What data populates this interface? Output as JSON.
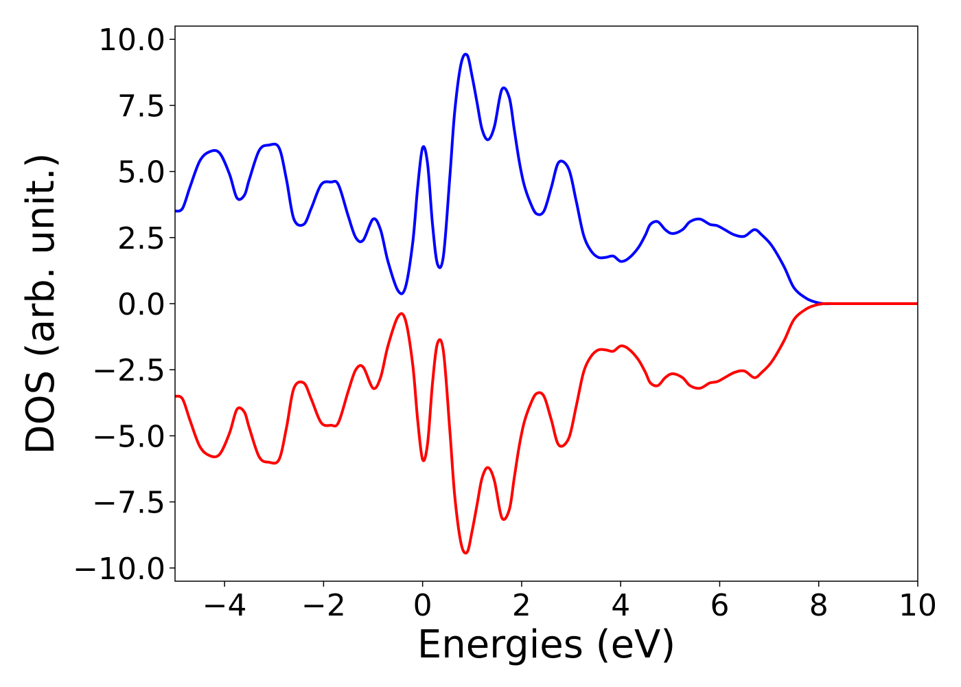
{
  "chart_data": {
    "type": "line",
    "xlabel": "Energies (eV)",
    "ylabel": "DOS (arb. unit.)",
    "xlim": [
      -5,
      10
    ],
    "ylim": [
      -10.5,
      10.5
    ],
    "x_ticks": [
      -4,
      -2,
      0,
      2,
      4,
      6,
      8,
      10
    ],
    "x_tick_labels": [
      "−4",
      "−2",
      "0",
      "2",
      "4",
      "6",
      "8",
      "10"
    ],
    "y_ticks": [
      10,
      7.5,
      5,
      2.5,
      0,
      -2.5,
      -5,
      -7.5,
      -10
    ],
    "y_tick_labels": [
      "10.0",
      "7.5",
      "5.0",
      "2.5",
      "0.0",
      "−2.5",
      "−5.0",
      "−7.5",
      "−10.0"
    ],
    "grid": false,
    "legend": "none",
    "series": [
      {
        "color": "#0000ff",
        "x": [
          -5.0,
          -4.85,
          -4.7,
          -4.5,
          -4.3,
          -4.1,
          -3.9,
          -3.75,
          -3.6,
          -3.5,
          -3.3,
          -3.1,
          -2.9,
          -2.75,
          -2.6,
          -2.4,
          -2.25,
          -2.05,
          -1.85,
          -1.7,
          -1.5,
          -1.35,
          -1.2,
          -1.0,
          -0.85,
          -0.7,
          -0.5,
          -0.35,
          -0.2,
          -0.1,
          0.0,
          0.1,
          0.2,
          0.3,
          0.42,
          0.55,
          0.65,
          0.78,
          0.9,
          1.0,
          1.1,
          1.2,
          1.32,
          1.45,
          1.6,
          1.75,
          1.85,
          1.95,
          2.05,
          2.18,
          2.3,
          2.45,
          2.6,
          2.75,
          2.95,
          3.1,
          3.25,
          3.4,
          3.55,
          3.7,
          3.85,
          4.0,
          4.15,
          4.35,
          4.5,
          4.6,
          4.75,
          4.9,
          5.05,
          5.25,
          5.4,
          5.6,
          5.8,
          5.95,
          6.1,
          6.3,
          6.5,
          6.7,
          6.85,
          7.05,
          7.3,
          7.5,
          7.75,
          7.95,
          8.1,
          8.25,
          8.4,
          8.55,
          8.7,
          8.85,
          9.0,
          9.2,
          9.5,
          10.0
        ],
        "y": [
          3.5,
          3.6,
          4.4,
          5.4,
          5.75,
          5.7,
          4.9,
          4.0,
          4.1,
          4.7,
          5.8,
          6.0,
          5.9,
          4.7,
          3.2,
          3.0,
          3.6,
          4.5,
          4.6,
          4.5,
          3.3,
          2.5,
          2.4,
          3.2,
          2.8,
          1.6,
          0.5,
          0.6,
          2.3,
          4.4,
          5.9,
          5.3,
          3.0,
          1.5,
          1.8,
          4.8,
          7.3,
          9.1,
          9.4,
          8.6,
          7.6,
          6.6,
          6.2,
          6.7,
          8.1,
          7.8,
          6.6,
          5.4,
          4.5,
          3.8,
          3.4,
          3.5,
          4.4,
          5.35,
          5.1,
          3.9,
          2.6,
          2.0,
          1.75,
          1.75,
          1.8,
          1.6,
          1.7,
          2.1,
          2.6,
          3.0,
          3.1,
          2.8,
          2.65,
          2.8,
          3.1,
          3.2,
          3.0,
          2.95,
          2.8,
          2.6,
          2.55,
          2.8,
          2.6,
          2.2,
          1.4,
          0.6,
          0.2,
          0.05,
          0.0,
          0.0,
          0.0,
          0.0,
          0.0,
          0.0,
          0.0,
          0.0,
          0.0,
          0.0
        ]
      },
      {
        "color": "#ff0000",
        "x": [
          -5.0,
          -4.85,
          -4.7,
          -4.5,
          -4.3,
          -4.1,
          -3.9,
          -3.75,
          -3.6,
          -3.5,
          -3.3,
          -3.1,
          -2.9,
          -2.75,
          -2.6,
          -2.4,
          -2.25,
          -2.05,
          -1.85,
          -1.7,
          -1.5,
          -1.35,
          -1.2,
          -1.0,
          -0.85,
          -0.7,
          -0.5,
          -0.35,
          -0.2,
          -0.1,
          0.0,
          0.1,
          0.2,
          0.3,
          0.42,
          0.55,
          0.65,
          0.78,
          0.9,
          1.0,
          1.1,
          1.2,
          1.32,
          1.45,
          1.6,
          1.75,
          1.85,
          1.95,
          2.05,
          2.18,
          2.3,
          2.45,
          2.6,
          2.75,
          2.95,
          3.1,
          3.25,
          3.4,
          3.55,
          3.7,
          3.85,
          4.0,
          4.15,
          4.35,
          4.5,
          4.6,
          4.75,
          4.9,
          5.05,
          5.25,
          5.4,
          5.6,
          5.8,
          5.95,
          6.1,
          6.3,
          6.5,
          6.7,
          6.85,
          7.05,
          7.3,
          7.5,
          7.75,
          7.95,
          8.1,
          8.25,
          8.4,
          8.55,
          8.7,
          8.85,
          9.0,
          9.2,
          9.5,
          10.0
        ],
        "y": [
          -3.5,
          -3.6,
          -4.4,
          -5.4,
          -5.75,
          -5.7,
          -4.9,
          -4.0,
          -4.1,
          -4.7,
          -5.8,
          -6.0,
          -5.9,
          -4.7,
          -3.2,
          -3.0,
          -3.6,
          -4.5,
          -4.6,
          -4.5,
          -3.3,
          -2.5,
          -2.4,
          -3.2,
          -2.8,
          -1.6,
          -0.5,
          -0.6,
          -2.3,
          -4.4,
          -5.9,
          -5.3,
          -3.0,
          -1.5,
          -1.8,
          -4.8,
          -7.3,
          -9.1,
          -9.4,
          -8.6,
          -7.6,
          -6.6,
          -6.2,
          -6.7,
          -8.1,
          -7.8,
          -6.6,
          -5.4,
          -4.5,
          -3.8,
          -3.4,
          -3.5,
          -4.4,
          -5.35,
          -5.1,
          -3.9,
          -2.6,
          -2.0,
          -1.75,
          -1.75,
          -1.8,
          -1.6,
          -1.7,
          -2.1,
          -2.6,
          -3.0,
          -3.1,
          -2.8,
          -2.65,
          -2.8,
          -3.1,
          -3.2,
          -3.0,
          -2.95,
          -2.8,
          -2.6,
          -2.55,
          -2.8,
          -2.6,
          -2.2,
          -1.4,
          -0.6,
          -0.2,
          -0.05,
          0.0,
          0.0,
          0.0,
          0.0,
          0.0,
          0.0,
          0.0,
          0.0,
          0.0,
          0.0
        ]
      }
    ]
  }
}
